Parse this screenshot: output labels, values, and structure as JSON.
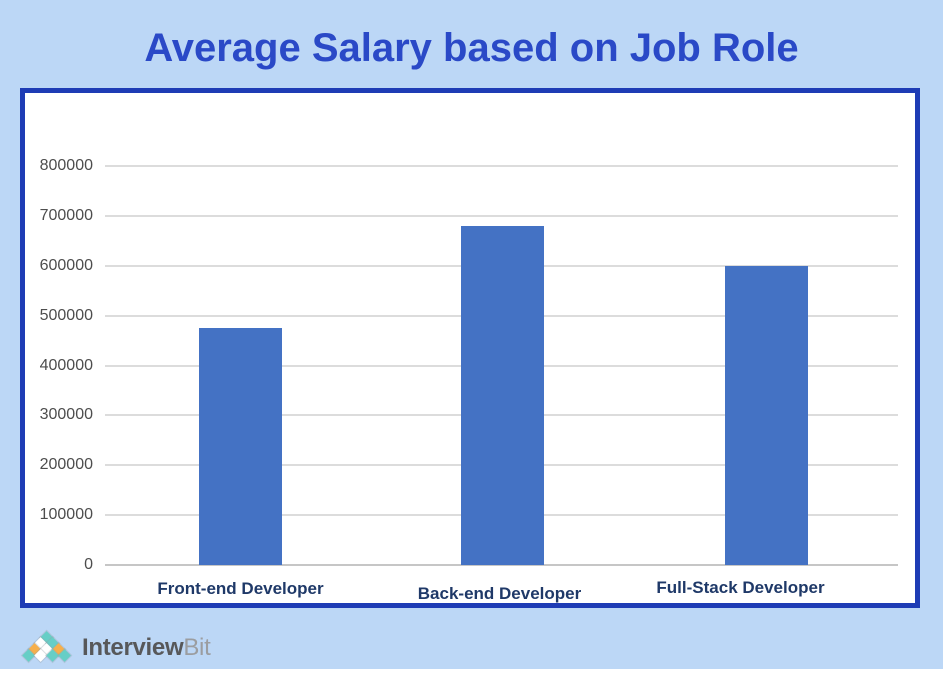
{
  "chart_data": {
    "type": "bar",
    "title": "Average Salary based on Job Role",
    "categories": [
      "Front-end Developer",
      "Back-end Developer",
      "Full-Stack Developer"
    ],
    "values": [
      475000,
      680000,
      600000
    ],
    "xlabel": "",
    "ylabel": "",
    "ylim": [
      0,
      800000
    ],
    "yticks": [
      800000,
      700000,
      600000,
      500000,
      400000,
      300000,
      200000,
      100000,
      0
    ],
    "grid": true,
    "legend": false,
    "bar_color": "#4472C4"
  },
  "logo": {
    "brand_bold": "Interview",
    "brand_light": "Bit",
    "pyramid": [
      [
        "teal"
      ],
      [
        "white",
        "teal"
      ],
      [
        "orange",
        "white",
        "orange"
      ],
      [
        "teal",
        "white",
        "teal",
        "teal"
      ]
    ],
    "diamond_colors": {
      "teal": "#66CEC6",
      "orange": "#F6AF4B",
      "white": "#FFFFFF"
    }
  },
  "colors": {
    "background": "#BCD7F6",
    "title": "#2A49C7",
    "panel_border": "#1E3CB5",
    "bar": "#4472C4",
    "category_label": "#1F3968",
    "tick_label": "#4D4D4D",
    "gridline": "#DCDCDC",
    "axis_line": "#C6C6C6",
    "logo_text_dark": "#57585A",
    "logo_text_light": "#9B9DA0"
  }
}
